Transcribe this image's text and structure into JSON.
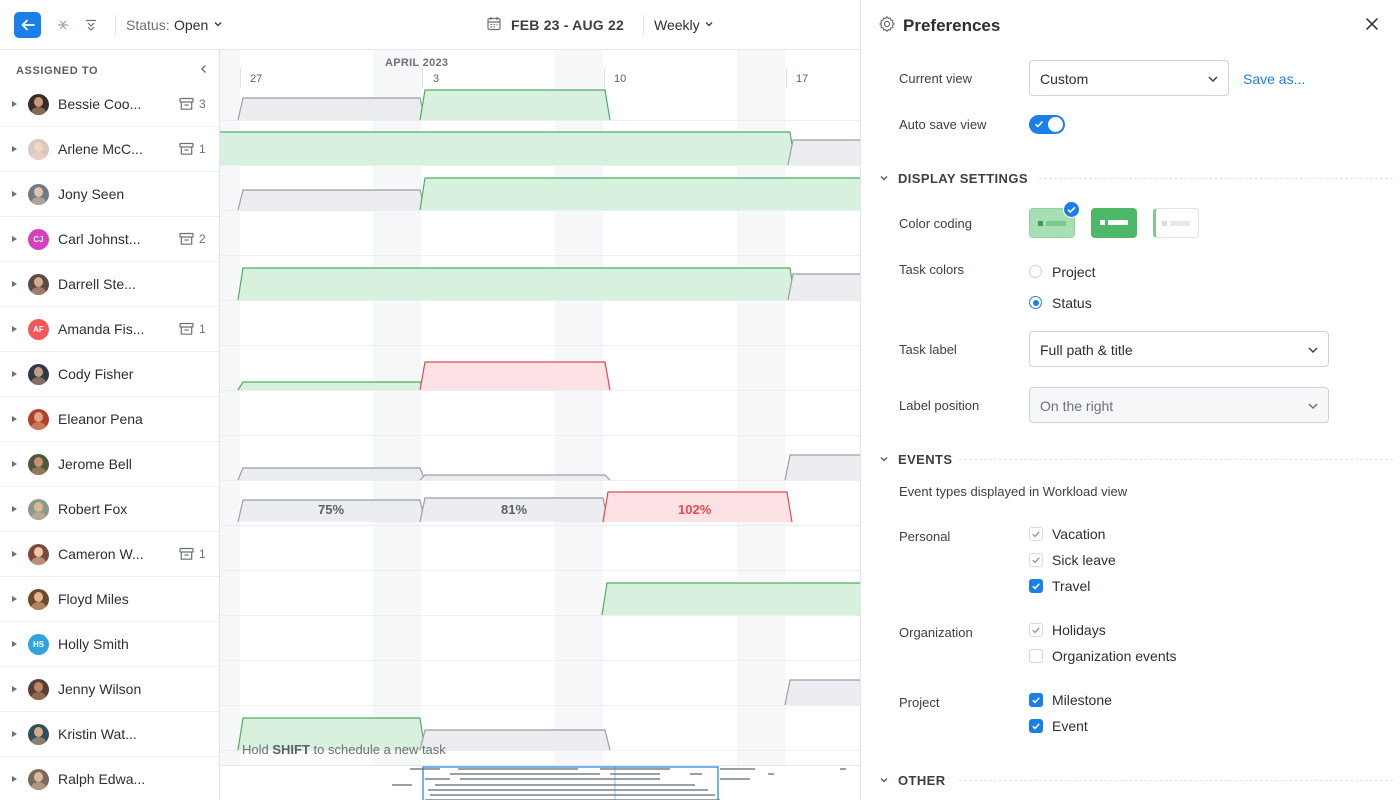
{
  "topbar": {
    "status_label": "Status:",
    "status_value": "Open",
    "date_range": "FEB 23 - AUG 22",
    "period": "Weekly",
    "icons": [
      "back-arrow-icon",
      "collapse-all-icon",
      "expand-all-icon",
      "chevron-down-icon",
      "calendar-icon"
    ]
  },
  "left": {
    "header": "ASSIGNED TO",
    "people": [
      {
        "name": "Bessie Coo...",
        "count": "3"
      },
      {
        "name": "Arlene McC...",
        "count": "1"
      },
      {
        "name": "Jony Seen",
        "count": ""
      },
      {
        "name": "Carl Johnst...",
        "count": "2",
        "initials": "CJ"
      },
      {
        "name": "Darrell Ste...",
        "count": ""
      },
      {
        "name": "Amanda Fis...",
        "count": "1",
        "initials": "AF"
      },
      {
        "name": "Cody Fisher",
        "count": ""
      },
      {
        "name": "Eleanor Pena",
        "count": ""
      },
      {
        "name": "Jerome Bell",
        "count": ""
      },
      {
        "name": "Robert Fox",
        "count": ""
      },
      {
        "name": "Cameron W...",
        "count": "1"
      },
      {
        "name": "Floyd Miles",
        "count": ""
      },
      {
        "name": "Holly Smith",
        "count": "",
        "initials": "HS"
      },
      {
        "name": "Jenny Wilson",
        "count": ""
      },
      {
        "name": "Kristin Wat...",
        "count": ""
      },
      {
        "name": "Ralph Edwa...",
        "count": ""
      }
    ]
  },
  "timeline": {
    "month": "APRIL 2023",
    "days": [
      "27",
      "3",
      "10",
      "17"
    ],
    "workload": [
      "75%",
      "81%",
      "102%"
    ],
    "hint_pre": "Hold ",
    "hint_key": "SHIFT",
    "hint_post": " to schedule a new task"
  },
  "prefs": {
    "title": "Preferences",
    "current_view_label": "Current view",
    "current_view_value": "Custom",
    "save_as": "Save as...",
    "auto_save_label": "Auto save view",
    "auto_save_on": true,
    "display_settings": "DISPLAY SETTINGS",
    "color_coding_label": "Color coding",
    "task_colors_label": "Task colors",
    "task_color_options": [
      "Project",
      "Status"
    ],
    "task_color_selected": "Status",
    "task_label_label": "Task label",
    "task_label_value": "Full path & title",
    "label_position_label": "Label position",
    "label_position_value": "On the right",
    "events": "EVENTS",
    "events_desc": "Event types displayed in Workload view",
    "personal_label": "Personal",
    "personal": [
      {
        "label": "Vacation",
        "checked": true,
        "disabled": true
      },
      {
        "label": "Sick leave",
        "checked": true,
        "disabled": true
      },
      {
        "label": "Travel",
        "checked": true,
        "disabled": false
      }
    ],
    "organization_label": "Organization",
    "organization": [
      {
        "label": "Holidays",
        "checked": true,
        "disabled": true
      },
      {
        "label": "Organization events",
        "checked": false,
        "disabled": false
      }
    ],
    "project_label": "Project",
    "project": [
      {
        "label": "Milestone",
        "checked": true,
        "disabled": false
      },
      {
        "label": "Event",
        "checked": true,
        "disabled": false
      }
    ],
    "other": "OTHER"
  },
  "colors": {
    "accent": "#1a7fe8",
    "green_fill": "#d8f0de",
    "green_stroke": "#4caf63",
    "gray_fill": "#ebedf0",
    "gray_stroke": "#9aa0a6",
    "red_fill": "#fde2e5",
    "red_stroke": "#e5484d"
  }
}
